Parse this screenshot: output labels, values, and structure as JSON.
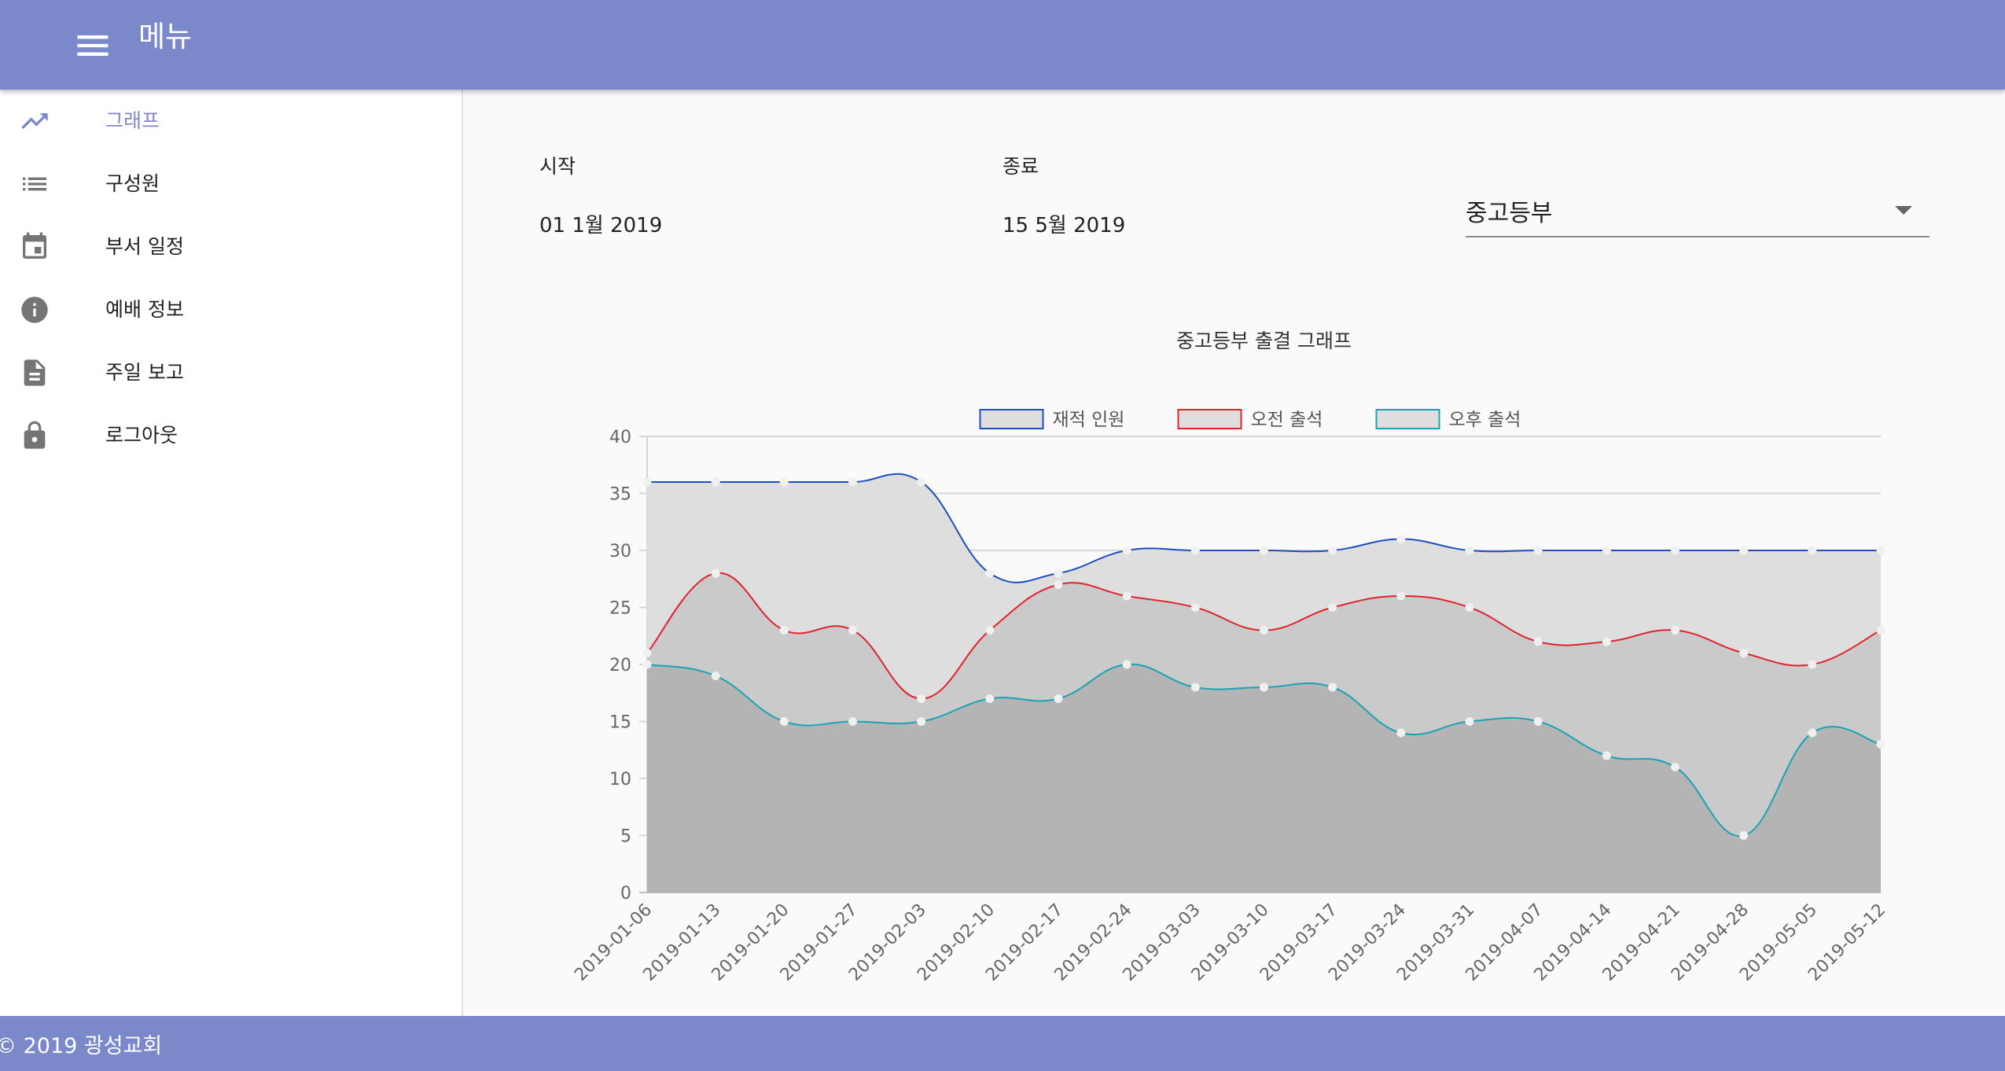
{
  "app": {
    "title": "메뉴"
  },
  "sidebar": {
    "items": [
      {
        "label": "그래프",
        "icon": "trending-up-icon",
        "active": true
      },
      {
        "label": "구성원",
        "icon": "list-icon"
      },
      {
        "label": "부서 일정",
        "icon": "calendar-icon"
      },
      {
        "label": "예배 정보",
        "icon": "info-icon"
      },
      {
        "label": "주일 보고",
        "icon": "document-icon"
      },
      {
        "label": "로그아웃",
        "icon": "lock-icon"
      }
    ]
  },
  "filters": {
    "start_label": "시작",
    "start_value": "01 1월 2019",
    "end_label": "종료",
    "end_value": "15 5월 2019",
    "department": "중고등부"
  },
  "chart_data": {
    "type": "area",
    "title": "중고등부 출결 그래프",
    "x": [
      "2019-01-06",
      "2019-01-13",
      "2019-01-20",
      "2019-01-27",
      "2019-02-03",
      "2019-02-10",
      "2019-02-17",
      "2019-02-24",
      "2019-03-03",
      "2019-03-10",
      "2019-03-17",
      "2019-03-24",
      "2019-03-31",
      "2019-04-07",
      "2019-04-14",
      "2019-04-21",
      "2019-04-28",
      "2019-05-05",
      "2019-05-12"
    ],
    "ylim": [
      0,
      40
    ],
    "yticks": [
      0,
      5,
      10,
      15,
      20,
      25,
      30,
      35,
      40
    ],
    "grid": true,
    "legend_position": "top",
    "series": [
      {
        "name": "재적 인원",
        "color": "#1f4fbf",
        "fill": "#dedede",
        "values": [
          36,
          36,
          36,
          36,
          36,
          28,
          28,
          30,
          30,
          30,
          30,
          31,
          30,
          30,
          30,
          30,
          30,
          30,
          30
        ]
      },
      {
        "name": "오전 출석",
        "color": "#e0242e",
        "fill": "#cacaca",
        "values": [
          21,
          28,
          23,
          23,
          17,
          23,
          27,
          26,
          25,
          23,
          25,
          26,
          25,
          22,
          22,
          23,
          21,
          20,
          23
        ]
      },
      {
        "name": "오후 출석",
        "color": "#1aa3b4",
        "fill": "#b4b4b4",
        "values": [
          20,
          19,
          15,
          15,
          15,
          17,
          17,
          20,
          18,
          18,
          18,
          14,
          15,
          15,
          12,
          11,
          5,
          14,
          13
        ]
      }
    ]
  },
  "footer": {
    "text": "© 2019 광성교회"
  }
}
